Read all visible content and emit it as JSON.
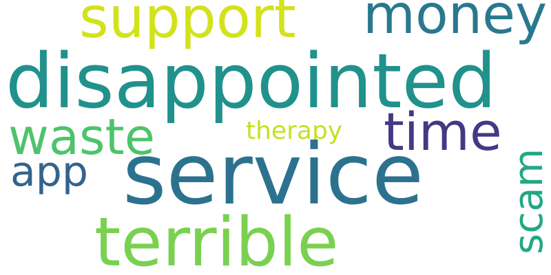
{
  "words": {
    "disappointed": {
      "text": "disappointed",
      "color": "#21918c"
    },
    "service": {
      "text": "service",
      "color": "#2c728e"
    },
    "terrible": {
      "text": "terrible",
      "color": "#7ad151"
    },
    "support": {
      "text": "support",
      "color": "#d2e21b"
    },
    "money": {
      "text": "money",
      "color": "#2a788e"
    },
    "waste": {
      "text": "waste",
      "color": "#4ec36b"
    },
    "time": {
      "text": "time",
      "color": "#443983"
    },
    "app": {
      "text": "app",
      "color": "#33638d"
    },
    "therapy": {
      "text": "therapy",
      "color": "#c5e021"
    },
    "scam": {
      "text": "scam",
      "color": "#22a884"
    }
  }
}
